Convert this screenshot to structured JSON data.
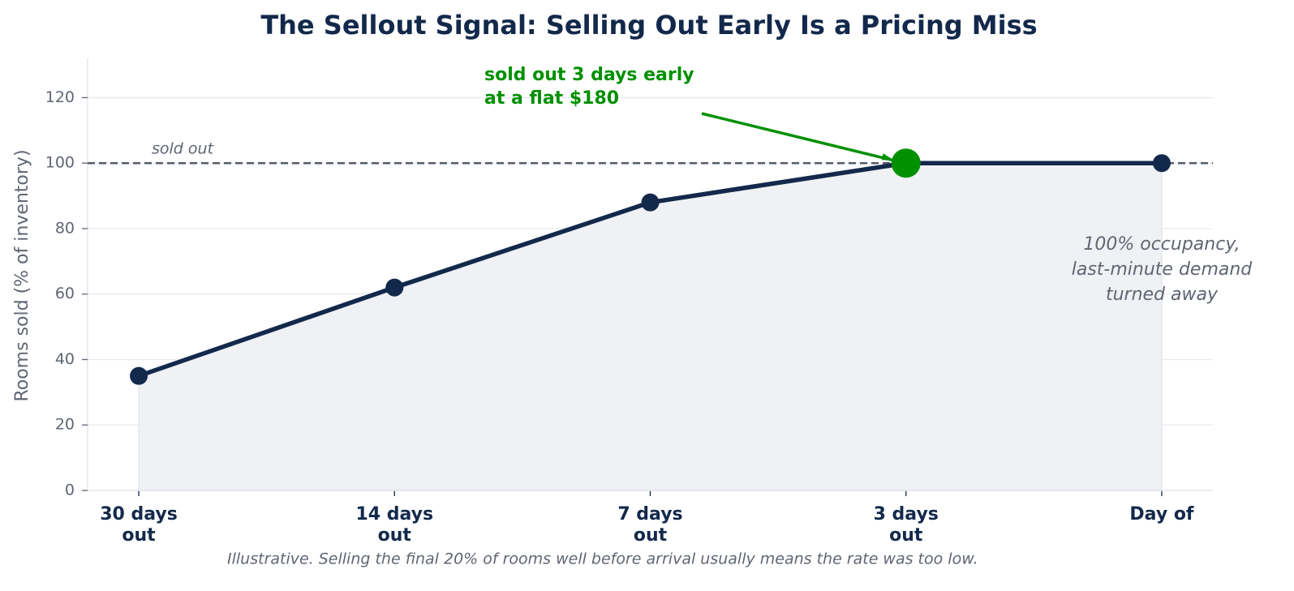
{
  "chart_data": {
    "type": "line",
    "title": "The Sellout Signal: Selling Out Early Is a Pricing Miss",
    "y_label": "Rooms sold (% of inventory)",
    "categories": [
      "30 days\nout",
      "14 days\nout",
      "7 days\nout",
      "3 days\nout",
      "Day of"
    ],
    "series": [
      {
        "name": "Rooms sold",
        "color": "#13294b",
        "values": [
          35,
          62,
          88,
          100,
          100
        ]
      }
    ],
    "highlight": {
      "index": 3,
      "color": "#009000"
    },
    "ylim": [
      0,
      132
    ],
    "yticks": [
      0,
      20,
      40,
      60,
      80,
      100,
      120
    ],
    "grid": true,
    "reference_line": {
      "value": 100,
      "label": "sold out"
    },
    "annotations": [
      "sold out 3 days early\nat a flat $180",
      "100% occupancy,\nlast-minute demand\nturned away"
    ],
    "footnote": "Illustrative. Selling the final 20% of rooms well before arrival usually means the rate was too low."
  }
}
